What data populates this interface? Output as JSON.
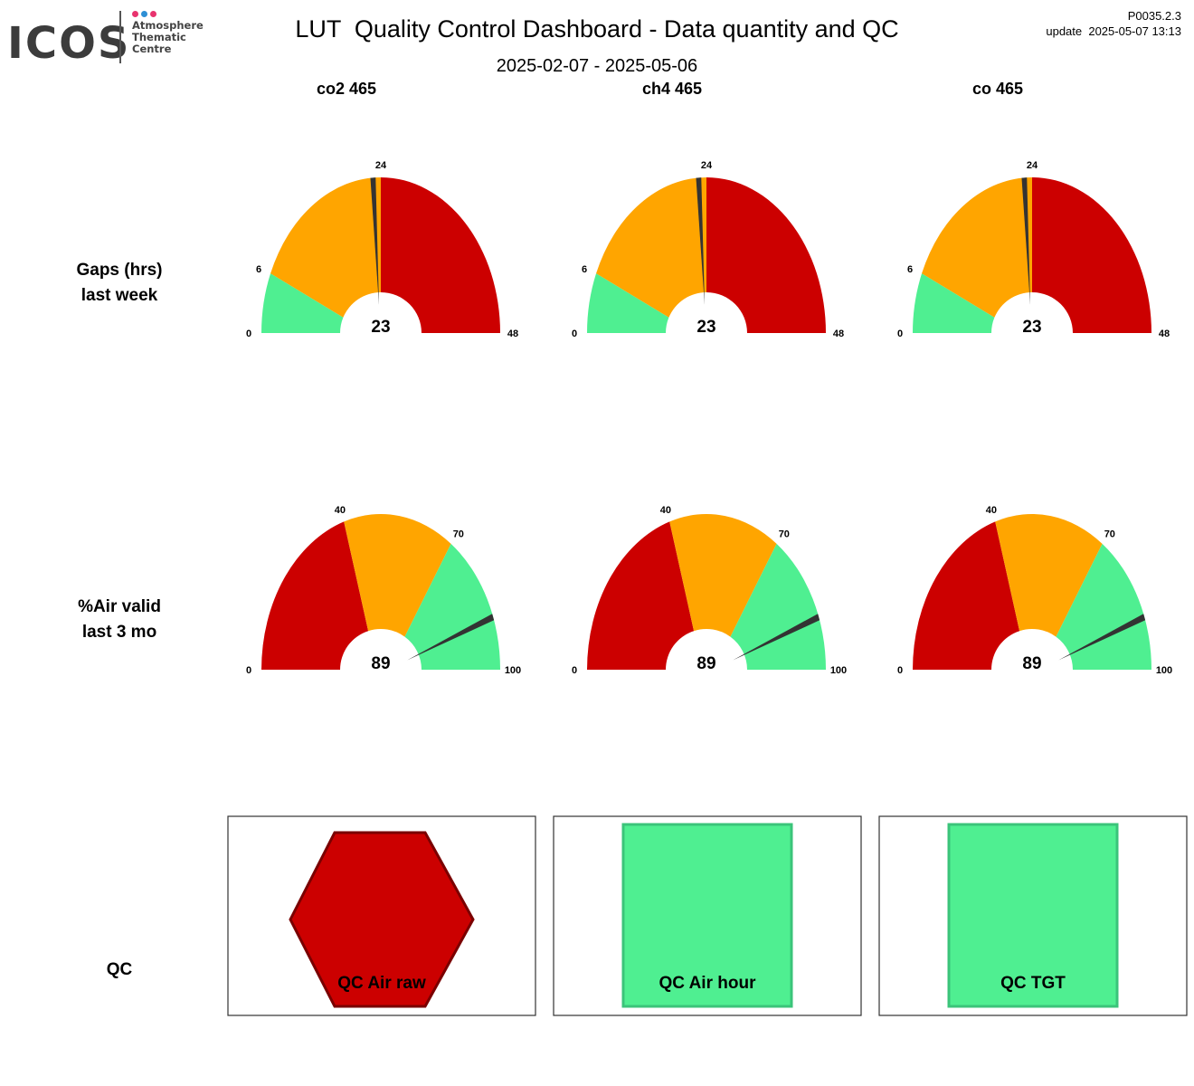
{
  "logo": {
    "wordmark": "ICOS",
    "lines": [
      "Atmosphere",
      "Thematic",
      "Centre"
    ],
    "dot_colors": [
      "#e8336e",
      "#2d8fd5",
      "#e8336e"
    ]
  },
  "header": {
    "title": "LUT  Quality Control Dashboard - Data quantity and QC",
    "date_range": "2025-02-07 - 2025-05-06",
    "version": "P0035.2.3",
    "update": "update  2025-05-07 13:13"
  },
  "colors": {
    "green": "#4fef91",
    "orange": "#ffa500",
    "red": "#cc0000",
    "needle": "#333333"
  },
  "chart_data": {
    "type": "gauge",
    "columns": [
      "co2 465",
      "ch4 465",
      "co 465"
    ],
    "rows": [
      {
        "label": [
          "Gaps (hrs)",
          "last week"
        ],
        "min": 0,
        "max": 48,
        "ticks": [
          0,
          6,
          24,
          48
        ],
        "bands": [
          {
            "from": 0,
            "to": 6,
            "color": "green"
          },
          {
            "from": 6,
            "to": 24,
            "color": "orange"
          },
          {
            "from": 24,
            "to": 48,
            "color": "red"
          }
        ],
        "values": [
          23,
          23,
          23
        ]
      },
      {
        "label": [
          "%Air valid",
          "last 3 mo"
        ],
        "min": 0,
        "max": 100,
        "ticks": [
          0,
          40,
          70,
          100
        ],
        "bands": [
          {
            "from": 0,
            "to": 40,
            "color": "red"
          },
          {
            "from": 40,
            "to": 70,
            "color": "orange"
          },
          {
            "from": 70,
            "to": 100,
            "color": "green"
          }
        ],
        "values": [
          89,
          89,
          89
        ]
      }
    ],
    "qc": {
      "label": "QC",
      "items": [
        {
          "label": "QC Air raw",
          "shape": "hexagon",
          "color": "red"
        },
        {
          "label": "QC Air hour",
          "shape": "square",
          "color": "green"
        },
        {
          "label": "QC TGT",
          "shape": "square",
          "color": "green"
        }
      ]
    }
  }
}
